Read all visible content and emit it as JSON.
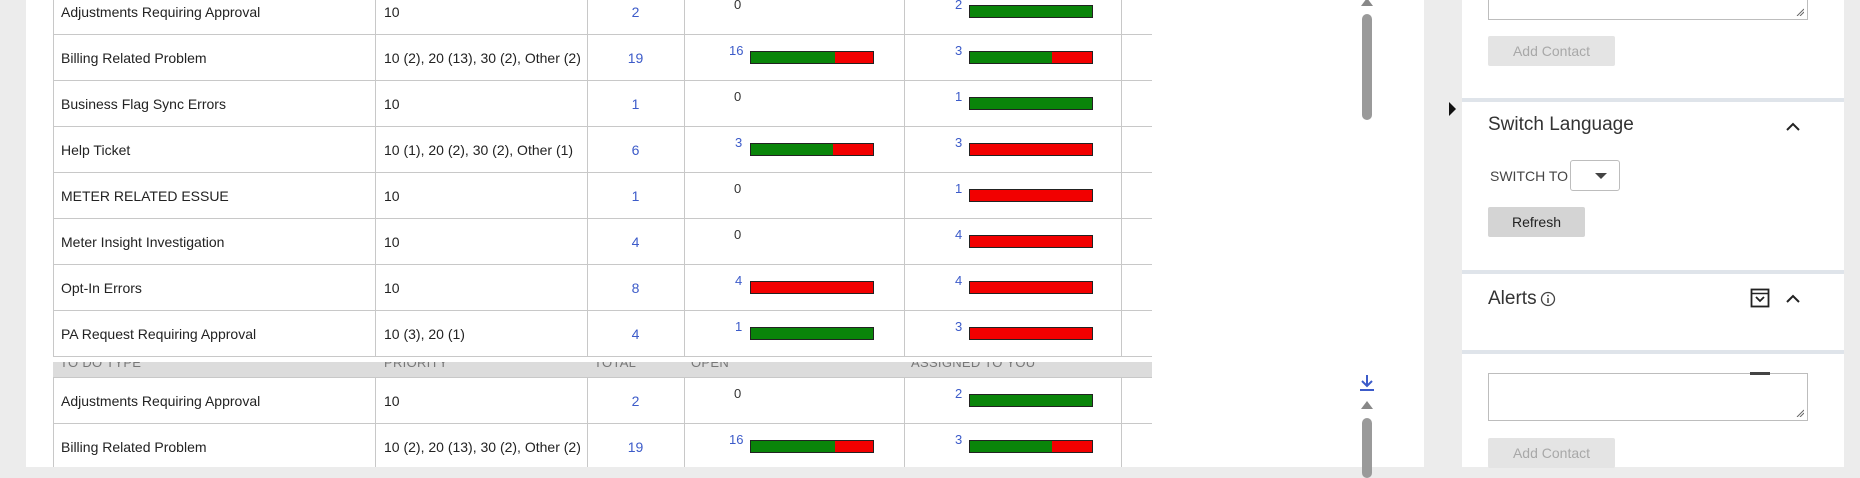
{
  "table": {
    "columns": [
      "TO DO TYPE",
      "PRIORITY",
      "TOTAL",
      "OPEN",
      "ASSIGNED TO YOU"
    ],
    "rows": [
      {
        "type": "Adjustments Requiring Approval",
        "priority": "10",
        "total": "2",
        "open": "0",
        "open_green": 0,
        "open_red": 0,
        "assigned": "2",
        "assigned_green": 1,
        "assigned_red": 0
      },
      {
        "type": "Billing Related Problem",
        "priority": "10 (2), 20 (13), 30 (2), Other (2)",
        "total": "19",
        "open": "16",
        "open_green": 0.69,
        "open_red": 0.31,
        "assigned": "3",
        "assigned_green": 0.67,
        "assigned_red": 0.33
      },
      {
        "type": "Business Flag Sync Errors",
        "priority": "10",
        "total": "1",
        "open": "0",
        "open_green": 0,
        "open_red": 0,
        "assigned": "1",
        "assigned_green": 1,
        "assigned_red": 0
      },
      {
        "type": "Help Ticket",
        "priority": "10 (1), 20 (2), 30 (2), Other (1)",
        "total": "6",
        "open": "3",
        "open_green": 0.67,
        "open_red": 0.33,
        "assigned": "3",
        "assigned_green": 0,
        "assigned_red": 1
      },
      {
        "type": "METER RELATED ESSUE",
        "priority": "10",
        "total": "1",
        "open": "0",
        "open_green": 0,
        "open_red": 0,
        "assigned": "1",
        "assigned_green": 0,
        "assigned_red": 1
      },
      {
        "type": "Meter Insight Investigation",
        "priority": "10",
        "total": "4",
        "open": "0",
        "open_green": 0,
        "open_red": 0,
        "assigned": "4",
        "assigned_green": 0,
        "assigned_red": 1
      },
      {
        "type": "Opt-In Errors",
        "priority": "10",
        "total": "8",
        "open": "4",
        "open_green": 0,
        "open_red": 1,
        "assigned": "4",
        "assigned_green": 0,
        "assigned_red": 1
      },
      {
        "type": "PA Request Requiring Approval",
        "priority": "10 (3), 20 (1)",
        "total": "4",
        "open": "1",
        "open_green": 1,
        "open_red": 0,
        "assigned": "3",
        "assigned_green": 0,
        "assigned_red": 1
      }
    ],
    "rows2": [
      {
        "type": "Adjustments Requiring Approval",
        "priority": "10",
        "total": "2",
        "open": "0",
        "open_green": 0,
        "open_red": 0,
        "assigned": "2",
        "assigned_green": 1,
        "assigned_red": 0
      },
      {
        "type": "Billing Related Problem",
        "priority": "10 (2), 20 (13), 30 (2), Other (2)",
        "total": "19",
        "open": "16",
        "open_green": 0.69,
        "open_red": 0.31,
        "assigned": "3",
        "assigned_green": 0.67,
        "assigned_red": 0.33
      }
    ]
  },
  "sidebar": {
    "add_contact_label": "Add Contact",
    "switch_language_title": "Switch Language",
    "switch_to_label": "SWITCH TO",
    "language_value": "",
    "refresh_label": "Refresh",
    "alerts_title": "Alerts",
    "add_contact_label_2": "Add Contact"
  },
  "colors": {
    "green": "#0a850a",
    "red": "#f20000",
    "link": "#3c5bc9"
  }
}
